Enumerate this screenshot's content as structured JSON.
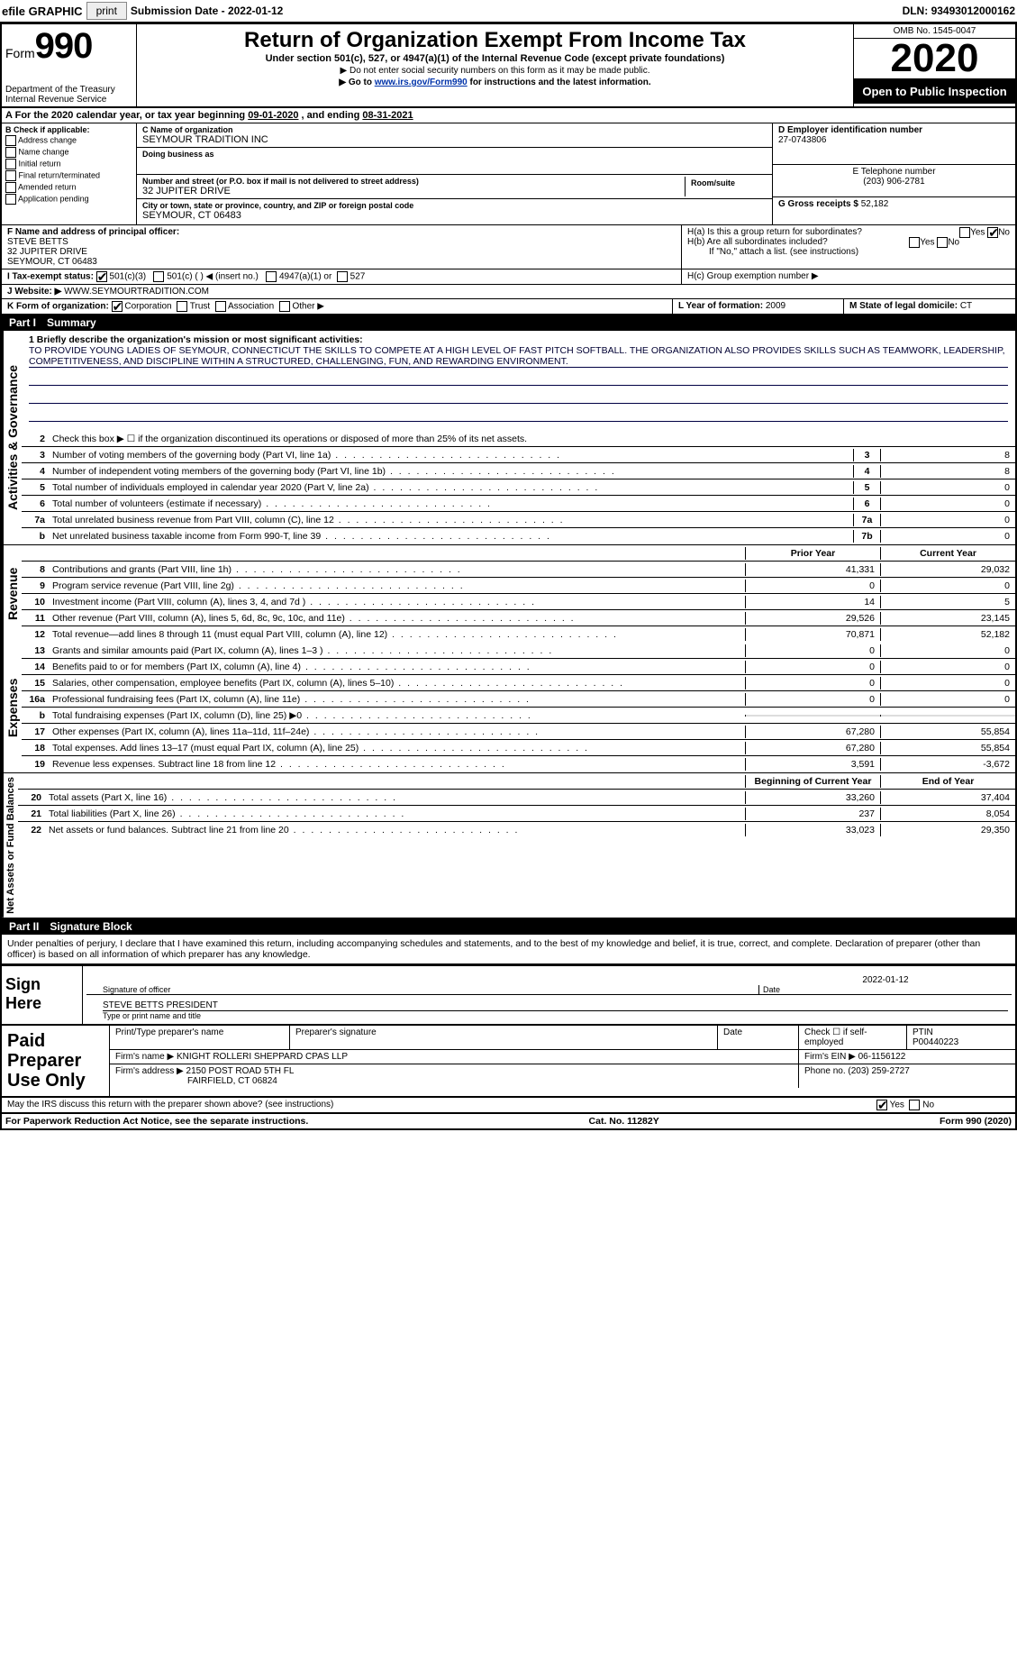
{
  "top_bar": {
    "efile": "efile GRAPHIC",
    "print_btn": "print",
    "submission_label": "Submission Date - ",
    "submission_date": "2022-01-12",
    "dln_label": "DLN: ",
    "dln": "93493012000162"
  },
  "header": {
    "form_prefix": "Form",
    "form_number": "990",
    "dept1": "Department of the Treasury",
    "dept2": "Internal Revenue Service",
    "title": "Return of Organization Exempt From Income Tax",
    "subtitle": "Under section 501(c), 527, or 4947(a)(1) of the Internal Revenue Code (except private foundations)",
    "note1": "▶ Do not enter social security numbers on this form as it may be made public.",
    "note2_pre": "▶ Go to ",
    "note2_link": "www.irs.gov/Form990",
    "note2_post": " for instructions and the latest information.",
    "omb": "OMB No. 1545-0047",
    "year": "2020",
    "open": "Open to Public Inspection"
  },
  "line_A": {
    "text_pre": "For the 2020 calendar year, or tax year beginning ",
    "begin": "09-01-2020",
    "text_mid": " , and ending ",
    "end": "08-31-2021"
  },
  "box_B": {
    "header": "B Check if applicable:",
    "items": [
      "Address change",
      "Name change",
      "Initial return",
      "Final return/terminated",
      "Amended return",
      "Application pending"
    ]
  },
  "box_C": {
    "name_lbl": "C Name of organization",
    "name": "SEYMOUR TRADITION INC",
    "dba_lbl": "Doing business as",
    "dba": "",
    "addr_lbl": "Number and street (or P.O. box if mail is not delivered to street address)",
    "room_lbl": "Room/suite",
    "addr": "32 JUPITER DRIVE",
    "city_lbl": "City or town, state or province, country, and ZIP or foreign postal code",
    "city": "SEYMOUR, CT  06483"
  },
  "box_D": {
    "ein_lbl": "D Employer identification number",
    "ein": "27-0743806",
    "phone_lbl": "E Telephone number",
    "phone": "(203) 906-2781",
    "gross_lbl": "G Gross receipts $ ",
    "gross": "52,182"
  },
  "box_F": {
    "lbl": "F Name and address of principal officer:",
    "name": "STEVE BETTS",
    "addr1": "32 JUPITER DRIVE",
    "addr2": "SEYMOUR, CT  06483"
  },
  "box_H": {
    "a_lbl": "H(a)  Is this a group return for subordinates?",
    "a_no_checked": true,
    "b_lbl": "H(b)  Are all subordinates included?",
    "b_note": "If \"No,\" attach a list. (see instructions)",
    "c_lbl": "H(c)  Group exemption number ▶"
  },
  "row_I": {
    "lbl": "I  Tax-exempt status:",
    "opt1": "501(c)(3)",
    "opt2": "501(c) (   ) ◀ (insert no.)",
    "opt3": "4947(a)(1) or",
    "opt4": "527",
    "checked_501c3": true
  },
  "row_J": {
    "lbl": "J  Website: ▶ ",
    "val": "WWW.SEYMOURTRADITION.COM"
  },
  "row_K": {
    "lbl": "K Form of organization:",
    "opts": [
      "Corporation",
      "Trust",
      "Association",
      "Other ▶"
    ],
    "corp_checked": true
  },
  "row_L": {
    "lbl": "L Year of formation: ",
    "val": "2009"
  },
  "row_M": {
    "lbl": "M State of legal domicile: ",
    "val": "CT"
  },
  "part1": {
    "num": "Part I",
    "title": "Summary"
  },
  "summary": {
    "side1": "Activities & Governance",
    "mission_lbl": "1  Briefly describe the organization's mission or most significant activities:",
    "mission": "TO PROVIDE YOUNG LADIES OF SEYMOUR, CONNECTICUT THE SKILLS TO COMPETE AT A HIGH LEVEL OF FAST PITCH SOFTBALL. THE ORGANIZATION ALSO PROVIDES SKILLS SUCH AS TEAMWORK, LEADERSHIP, COMPETITIVENESS, AND DISCIPLINE WITHIN A STRUCTURED, CHALLENGING, FUN, AND REWARDING ENVIRONMENT.",
    "line2": "Check this box ▶ ☐ if the organization discontinued its operations or disposed of more than 25% of its net assets.",
    "lines_gov": [
      {
        "n": "3",
        "t": "Number of voting members of the governing body (Part VI, line 1a)",
        "b": "3",
        "v": "8"
      },
      {
        "n": "4",
        "t": "Number of independent voting members of the governing body (Part VI, line 1b)",
        "b": "4",
        "v": "8"
      },
      {
        "n": "5",
        "t": "Total number of individuals employed in calendar year 2020 (Part V, line 2a)",
        "b": "5",
        "v": "0"
      },
      {
        "n": "6",
        "t": "Total number of volunteers (estimate if necessary)",
        "b": "6",
        "v": "0"
      },
      {
        "n": "7a",
        "t": "Total unrelated business revenue from Part VIII, column (C), line 12",
        "b": "7a",
        "v": "0"
      },
      {
        "n": "b",
        "t": "Net unrelated business taxable income from Form 990-T, line 39",
        "b": "7b",
        "v": "0"
      }
    ],
    "col_prior": "Prior Year",
    "col_current": "Current Year",
    "side2": "Revenue",
    "lines_rev": [
      {
        "n": "8",
        "t": "Contributions and grants (Part VIII, line 1h)",
        "p": "41,331",
        "c": "29,032"
      },
      {
        "n": "9",
        "t": "Program service revenue (Part VIII, line 2g)",
        "p": "0",
        "c": "0"
      },
      {
        "n": "10",
        "t": "Investment income (Part VIII, column (A), lines 3, 4, and 7d )",
        "p": "14",
        "c": "5"
      },
      {
        "n": "11",
        "t": "Other revenue (Part VIII, column (A), lines 5, 6d, 8c, 9c, 10c, and 11e)",
        "p": "29,526",
        "c": "23,145"
      },
      {
        "n": "12",
        "t": "Total revenue—add lines 8 through 11 (must equal Part VIII, column (A), line 12)",
        "p": "70,871",
        "c": "52,182"
      }
    ],
    "side3": "Expenses",
    "lines_exp": [
      {
        "n": "13",
        "t": "Grants and similar amounts paid (Part IX, column (A), lines 1–3 )",
        "p": "0",
        "c": "0"
      },
      {
        "n": "14",
        "t": "Benefits paid to or for members (Part IX, column (A), line 4)",
        "p": "0",
        "c": "0"
      },
      {
        "n": "15",
        "t": "Salaries, other compensation, employee benefits (Part IX, column (A), lines 5–10)",
        "p": "0",
        "c": "0"
      },
      {
        "n": "16a",
        "t": "Professional fundraising fees (Part IX, column (A), line 11e)",
        "p": "0",
        "c": "0"
      },
      {
        "n": "b",
        "t": "Total fundraising expenses (Part IX, column (D), line 25) ▶0",
        "p": "",
        "c": ""
      },
      {
        "n": "17",
        "t": "Other expenses (Part IX, column (A), lines 11a–11d, 11f–24e)",
        "p": "67,280",
        "c": "55,854"
      },
      {
        "n": "18",
        "t": "Total expenses. Add lines 13–17 (must equal Part IX, column (A), line 25)",
        "p": "67,280",
        "c": "55,854"
      },
      {
        "n": "19",
        "t": "Revenue less expenses. Subtract line 18 from line 12",
        "p": "3,591",
        "c": "-3,672"
      }
    ],
    "side4": "Net Assets or Fund Balances",
    "col_begin": "Beginning of Current Year",
    "col_end": "End of Year",
    "lines_net": [
      {
        "n": "20",
        "t": "Total assets (Part X, line 16)",
        "p": "33,260",
        "c": "37,404"
      },
      {
        "n": "21",
        "t": "Total liabilities (Part X, line 26)",
        "p": "237",
        "c": "8,054"
      },
      {
        "n": "22",
        "t": "Net assets or fund balances. Subtract line 21 from line 20",
        "p": "33,023",
        "c": "29,350"
      }
    ]
  },
  "part2": {
    "num": "Part II",
    "title": "Signature Block"
  },
  "sig": {
    "perjury": "Under penalties of perjury, I declare that I have examined this return, including accompanying schedules and statements, and to the best of my knowledge and belief, it is true, correct, and complete. Declaration of preparer (other than officer) is based on all information of which preparer has any knowledge.",
    "sign_here": "Sign Here",
    "sig_officer_lbl": "Signature of officer",
    "date_lbl": "Date",
    "date": "2022-01-12",
    "name_title": "STEVE BETTS PRESIDENT",
    "name_title_lbl": "Type or print name and title"
  },
  "paid": {
    "title": "Paid Preparer Use Only",
    "h_name": "Print/Type preparer's name",
    "h_sig": "Preparer's signature",
    "h_date": "Date",
    "h_self": "Check ☐ if self-employed",
    "h_ptin": "PTIN",
    "ptin": "P00440223",
    "firm_name_lbl": "Firm's name    ▶ ",
    "firm_name": "KNIGHT ROLLERI SHEPPARD CPAS LLP",
    "firm_ein_lbl": "Firm's EIN ▶ ",
    "firm_ein": "06-1156122",
    "firm_addr_lbl": "Firm's address ▶ ",
    "firm_addr1": "2150 POST ROAD 5TH FL",
    "firm_addr2": "FAIRFIELD, CT  06824",
    "firm_phone_lbl": "Phone no. ",
    "firm_phone": "(203) 259-2727"
  },
  "discuss": {
    "text": "May the IRS discuss this return with the preparer shown above? (see instructions)",
    "yes_checked": true
  },
  "footer": {
    "left": "For Paperwork Reduction Act Notice, see the separate instructions.",
    "mid": "Cat. No. 11282Y",
    "right": "Form 990 (2020)"
  }
}
